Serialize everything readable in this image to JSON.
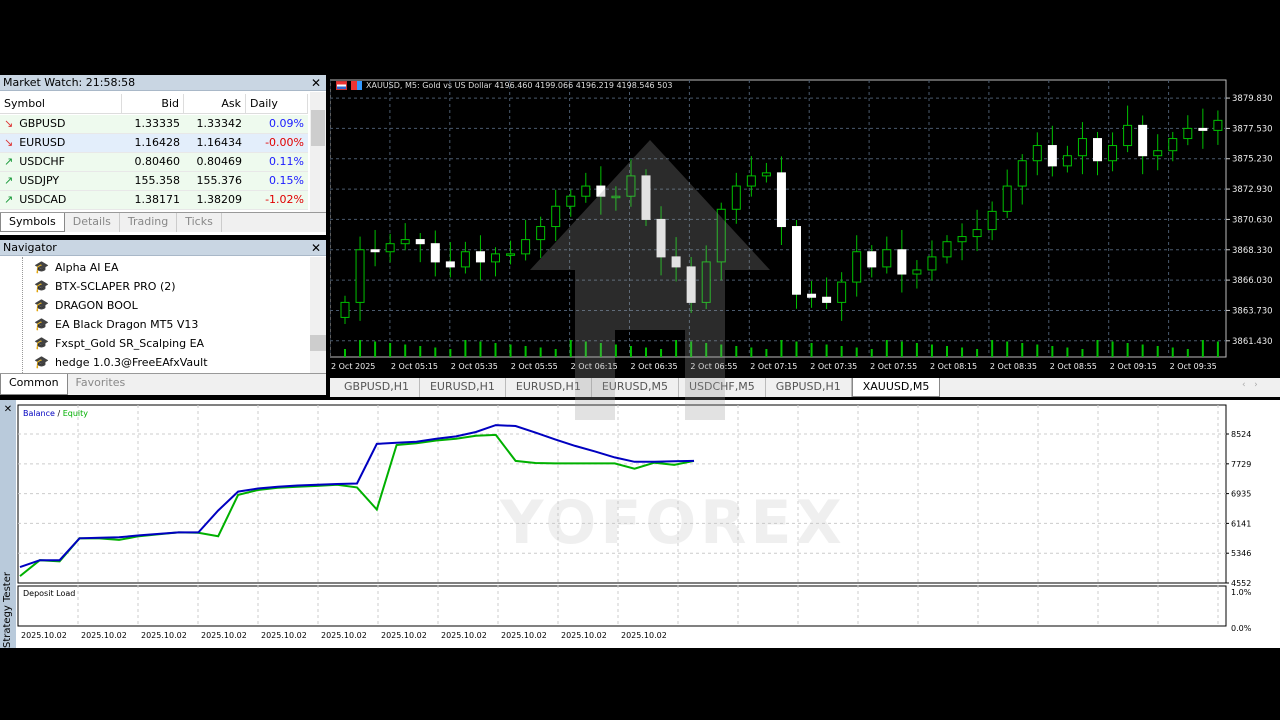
{
  "market_watch": {
    "title": "Market Watch: 21:58:58",
    "columns": [
      "Symbol",
      "Bid",
      "Ask",
      "Daily Ch..."
    ],
    "rows": [
      {
        "symbol": "GBPUSD",
        "dir": "down",
        "bid": "1.33335",
        "ask": "1.33342",
        "change": "0.09%",
        "change_color": "#1a1aff"
      },
      {
        "symbol": "EURUSD",
        "dir": "down",
        "bid": "1.16428",
        "ask": "1.16434",
        "change": "-0.00%",
        "change_color": "#e00000"
      },
      {
        "symbol": "USDCHF",
        "dir": "up",
        "bid": "0.80460",
        "ask": "0.80469",
        "change": "0.11%",
        "change_color": "#1a1aff"
      },
      {
        "symbol": "USDJPY",
        "dir": "up",
        "bid": "155.358",
        "ask": "155.376",
        "change": "0.15%",
        "change_color": "#1a1aff"
      },
      {
        "symbol": "USDCAD",
        "dir": "up",
        "bid": "1.38171",
        "ask": "1.38209",
        "change": "-1.02%",
        "change_color": "#e00000"
      }
    ],
    "tabs": [
      "Symbols",
      "Details",
      "Trading",
      "Ticks"
    ]
  },
  "navigator": {
    "title": "Navigator",
    "items": [
      "Alpha AI EA",
      "BTX-SCLAPER PRO (2)",
      "DRAGON BOOL",
      "EA Black Dragon MT5 V13",
      "Fxspt_Gold SR_Scalping EA",
      "hedge 1.0.3@FreeEAfxVault"
    ],
    "tabs": [
      "Common",
      "Favorites"
    ]
  },
  "chart": {
    "header": "XAUUSD, M5:  Gold vs US Dollar  4196.460 4199.066 4196.219 4198.546  503",
    "price_labels": [
      "3879.830",
      "3877.530",
      "3875.230",
      "3872.930",
      "3870.630",
      "3868.330",
      "3866.030",
      "3863.730",
      "3861.430"
    ],
    "time_labels": [
      "2 Oct 2025",
      "2 Oct 05:15",
      "2 Oct 05:35",
      "2 Oct 05:55",
      "2 Oct 06:15",
      "2 Oct 06:35",
      "2 Oct 06:55",
      "2 Oct 07:15",
      "2 Oct 07:35",
      "2 Oct 07:55",
      "2 Oct 08:15",
      "2 Oct 08:35",
      "2 Oct 08:55",
      "2 Oct 09:15",
      "2 Oct 09:35"
    ],
    "tabs": [
      "GBPUSD,H1",
      "EURUSD,H1",
      "EURUSD,H1",
      "EURUSD,M5",
      "USDCHF,M5",
      "GBPUSD,H1",
      "XAUUSD,M5"
    ],
    "active_tab": 6,
    "colors": {
      "bull": "#00c000",
      "bear": "#ffffff",
      "background": "#000000"
    }
  },
  "chart_data": [
    {
      "type": "candlestick",
      "symbol": "XAUUSD",
      "timeframe": "M5",
      "ylim": [
        3860.2,
        3881.2
      ],
      "open_first": 3863.2,
      "closes": [
        3864.34,
        3868.33,
        3868.18,
        3868.79,
        3869.1,
        3868.79,
        3867.41,
        3867.03,
        3868.18,
        3867.41,
        3868.02,
        3868.02,
        3869.1,
        3870.09,
        3871.63,
        3872.39,
        3873.16,
        3872.39,
        3872.39,
        3873.93,
        3870.63,
        3867.79,
        3867.03,
        3864.34,
        3867.41,
        3871.4,
        3873.16,
        3873.93,
        3874.16,
        3870.09,
        3864.96,
        3864.73,
        3864.34,
        3865.88,
        3868.18,
        3867.03,
        3868.33,
        3866.49,
        3866.8,
        3867.79,
        3868.94,
        3869.33,
        3869.86,
        3871.24,
        3873.16,
        3875.08,
        3876.23,
        3874.69,
        3875.46,
        3876.76,
        3875.08,
        3876.23,
        3877.76,
        3875.46,
        3875.84,
        3876.76,
        3877.53,
        3877.38,
        3878.14
      ]
    },
    {
      "type": "line",
      "legend": [
        "Balance",
        "Equity"
      ],
      "ylim": [
        4552,
        8950
      ],
      "y_ticks": [
        "8524",
        "7729",
        "6935",
        "6141",
        "5346",
        "4552"
      ],
      "x_labels": [
        "2025.10.02",
        "2025.10.02",
        "2025.10.02",
        "2025.10.02",
        "2025.10.02",
        "2025.10.02",
        "2025.10.02",
        "2025.10.02",
        "2025.10.02",
        "2025.10.02",
        "2025.10.02"
      ],
      "series": [
        {
          "name": "Balance",
          "color": "#0000c0",
          "values": [
            4976,
            5161,
            5161,
            5744,
            5760,
            5770,
            5820,
            5860,
            5902,
            5902,
            6485,
            6988,
            7070,
            7120,
            7150,
            7170,
            7190,
            7205,
            8259,
            8290,
            8320,
            8400,
            8460,
            8577,
            8762,
            8736,
            8560,
            8380,
            8206,
            8060,
            7900,
            7782,
            7782,
            7800,
            7808
          ]
        },
        {
          "name": "Equity",
          "color": "#00b000",
          "values": [
            4737,
            5161,
            5130,
            5744,
            5740,
            5700,
            5800,
            5850,
            5900,
            5890,
            5800,
            6900,
            7030,
            7090,
            7120,
            7140,
            7170,
            7100,
            6511,
            8230,
            8280,
            8350,
            8400,
            8480,
            8500,
            7808,
            7750,
            7740,
            7740,
            7740,
            7740,
            7600,
            7760,
            7700,
            7808
          ]
        }
      ]
    },
    {
      "type": "line",
      "title": "Deposit Load",
      "y_ticks": [
        "1.0%",
        "0.0%"
      ]
    }
  ],
  "tester": {
    "side_label": "Strategy Tester",
    "legend_sep": " / "
  },
  "watermark": {
    "text": "YOFOREX"
  }
}
